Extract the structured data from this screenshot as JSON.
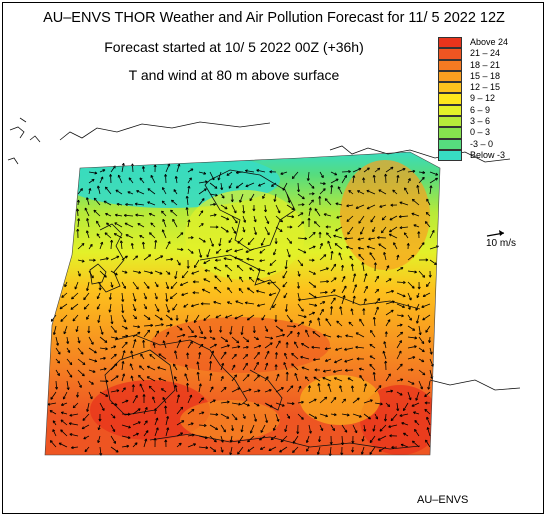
{
  "header": {
    "title": "AU–ENVS THOR Weather and Air Pollution Forecast for 11/ 5 2022  12Z",
    "forecast_started": "Forecast started at 10/ 5 2022  00Z (+36h)",
    "field": "T and wind at 80 m above surface"
  },
  "legend": {
    "items": [
      {
        "label": "Above   24",
        "color": "#e8341c"
      },
      {
        "label": "21  –  24",
        "color": "#ee5522"
      },
      {
        "label": "18  –  21",
        "color": "#f47a22"
      },
      {
        "label": "15  –  18",
        "color": "#f99f1f"
      },
      {
        "label": "12  –  15",
        "color": "#fdc21d"
      },
      {
        "label": "9  –  12",
        "color": "#fde61c"
      },
      {
        "label": "6  –    9",
        "color": "#e3f129"
      },
      {
        "label": "3  –    6",
        "color": "#b6ea3a"
      },
      {
        "label": "0  –    3",
        "color": "#86e24e"
      },
      {
        "label": "-3  –    0",
        "color": "#56dc7e"
      },
      {
        "label": "Below   -3",
        "color": "#37dcc3"
      }
    ]
  },
  "wind_key": {
    "label": "10 m/s"
  },
  "credit": "AU–ENVS"
}
